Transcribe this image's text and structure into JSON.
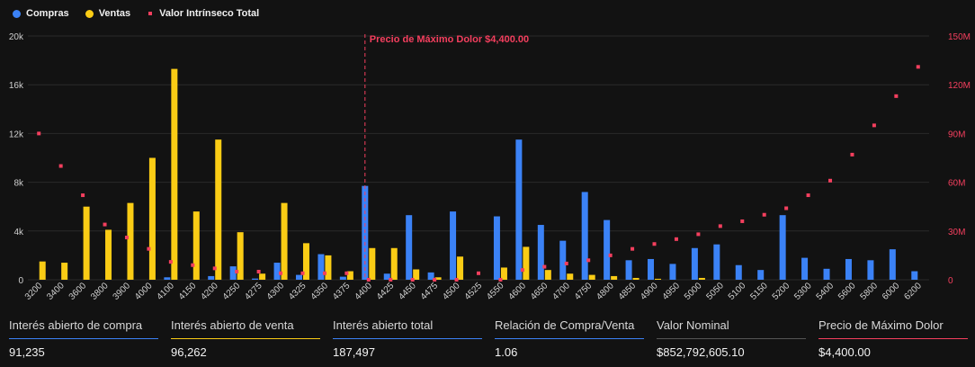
{
  "legend": [
    {
      "label": "Compras",
      "color": "#3b82f6",
      "shape": "circle"
    },
    {
      "label": "Ventas",
      "color": "#facc15",
      "shape": "circle"
    },
    {
      "label": "Valor Intrínseco Total",
      "color": "#f43f5e",
      "shape": "square"
    }
  ],
  "colors": {
    "compras": "#3b82f6",
    "ventas": "#facc15",
    "valor": "#f43f5e",
    "grid": "#2a2a2a",
    "axis_text": "#cfcfcf"
  },
  "chart_data": {
    "type": "bar",
    "categories": [
      "3200",
      "3400",
      "3600",
      "3800",
      "3900",
      "4000",
      "4100",
      "4150",
      "4200",
      "4250",
      "4275",
      "4300",
      "4325",
      "4350",
      "4375",
      "4400",
      "4425",
      "4450",
      "4475",
      "4500",
      "4525",
      "4550",
      "4600",
      "4650",
      "4700",
      "4750",
      "4800",
      "4850",
      "4900",
      "4950",
      "5000",
      "5050",
      "5100",
      "5150",
      "5200",
      "5300",
      "5400",
      "5600",
      "5800",
      "6000",
      "6200"
    ],
    "series": [
      {
        "name": "Compras",
        "axis": "left",
        "values": [
          0,
          0,
          0,
          0,
          0,
          0,
          200,
          0,
          300,
          1100,
          100,
          1400,
          400,
          2100,
          250,
          7700,
          500,
          5300,
          600,
          5600,
          0,
          5200,
          11500,
          4500,
          3200,
          7200,
          4900,
          1600,
          1700,
          1300,
          2600,
          2900,
          1200,
          800,
          5300,
          1800,
          900,
          1700,
          1600,
          2500,
          700
        ]
      },
      {
        "name": "Ventas",
        "axis": "left",
        "values": [
          1500,
          1400,
          6000,
          4100,
          6300,
          10000,
          17300,
          5600,
          11500,
          3900,
          500,
          6300,
          3000,
          2000,
          700,
          2600,
          2600,
          850,
          200,
          1900,
          0,
          1000,
          2700,
          800,
          500,
          400,
          300,
          150,
          80,
          0,
          150,
          0,
          0,
          0,
          0,
          0,
          0,
          0,
          0,
          0,
          0
        ]
      },
      {
        "name": "Valor Intrínseco Total",
        "axis": "right",
        "type": "scatter",
        "values": [
          90,
          70,
          52,
          34,
          26,
          19,
          11,
          9,
          7,
          5,
          5,
          4,
          4,
          4,
          4,
          0,
          0,
          0,
          0,
          0,
          4,
          0,
          6,
          8,
          10,
          12,
          15,
          19,
          22,
          25,
          28,
          33,
          36,
          40,
          44,
          52,
          61,
          77,
          95,
          113,
          131
        ]
      }
    ],
    "left_axis": {
      "ticks": [
        "0",
        "4k",
        "8k",
        "12k",
        "16k",
        "20k"
      ],
      "values": [
        0,
        4000,
        8000,
        12000,
        16000,
        20000
      ],
      "ylim": [
        0,
        20000
      ]
    },
    "right_axis": {
      "ticks": [
        "0",
        "30M",
        "60M",
        "90M",
        "120M",
        "150M"
      ],
      "values": [
        0,
        30,
        60,
        90,
        120,
        150
      ],
      "ylim": [
        0,
        150
      ],
      "unit": "M"
    },
    "annotation": {
      "label": "Precio de Máximo Dolor $4,400.00",
      "at_category": "4400"
    },
    "grid": true
  },
  "stats": [
    {
      "label": "Interés abierto de compra",
      "value": "91,235",
      "color": "#3b82f6"
    },
    {
      "label": "Interés abierto de venta",
      "value": "96,262",
      "color": "#facc15"
    },
    {
      "label": "Interés abierto total",
      "value": "187,497",
      "color": "#3b82f6"
    },
    {
      "label": "Relación de Compra/Venta",
      "value": "1.06",
      "color": "#3b82f6"
    },
    {
      "label": "Valor Nominal",
      "value": "$852,792,605.10",
      "color": "#555555"
    },
    {
      "label": "Precio de Máximo Dolor",
      "value": "$4,400.00",
      "color": "#f43f5e"
    }
  ]
}
